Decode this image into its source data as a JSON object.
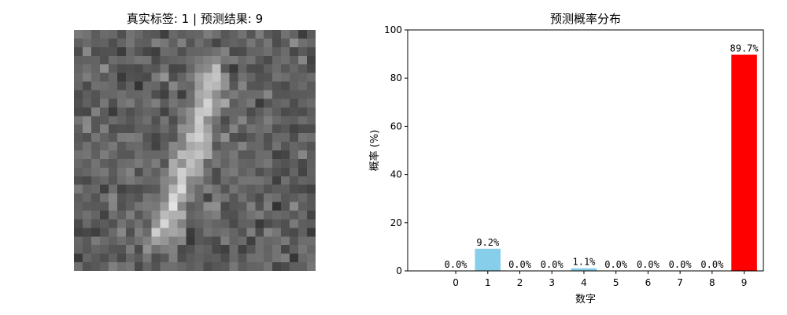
{
  "left_panel": {
    "title": "真实标签: 1 | 预测结果: 9",
    "image_size": 28
  },
  "chart_data": {
    "type": "bar",
    "title": "预测概率分布",
    "xlabel": "数字",
    "ylabel": "概率 (%)",
    "categories": [
      "0",
      "1",
      "2",
      "3",
      "4",
      "5",
      "6",
      "7",
      "8",
      "9"
    ],
    "values": [
      0.0,
      9.2,
      0.0,
      0.0,
      1.1,
      0.0,
      0.0,
      0.0,
      0.0,
      89.7
    ],
    "value_labels": [
      "0.0%",
      "9.2%",
      "0.0%",
      "0.0%",
      "1.1%",
      "0.0%",
      "0.0%",
      "0.0%",
      "0.0%",
      "89.7%"
    ],
    "ylim": [
      0,
      100
    ],
    "yticks": [
      0,
      20,
      40,
      60,
      80,
      100
    ],
    "colors": {
      "default": "#87ceeb",
      "predicted": "#ff0000",
      "predicted_index": 9
    },
    "grid": false,
    "legend": "none"
  }
}
